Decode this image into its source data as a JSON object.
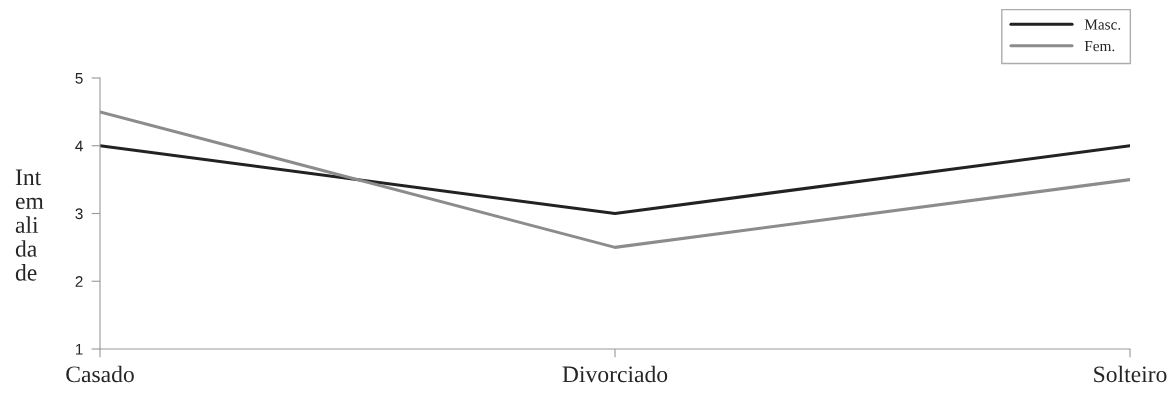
{
  "chart_data": {
    "type": "line",
    "ylabel": "Int\nem\nali\nda\nde",
    "categories": [
      "Casado",
      "Divorciado",
      "Solteiro"
    ],
    "series": [
      {
        "name": "Masc.",
        "color": "#222222",
        "values": [
          4,
          3,
          4
        ]
      },
      {
        "name": "Fem.",
        "color": "#8c8c8c",
        "values": [
          4.5,
          2.5,
          3.5
        ]
      }
    ],
    "ylim": [
      1,
      5
    ],
    "yticks": [
      1,
      2,
      3,
      4,
      5
    ],
    "grid": false,
    "legend": "top right",
    "marker": "none",
    "line_style": "solid"
  }
}
